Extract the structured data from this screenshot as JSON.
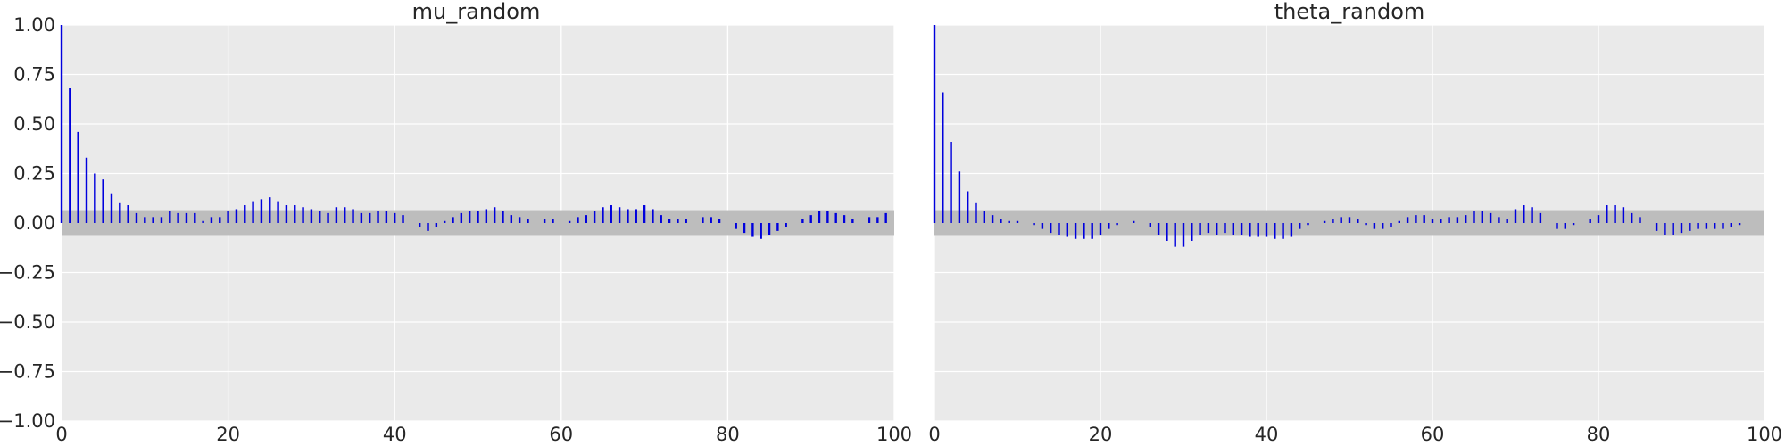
{
  "colors": {
    "bar": "#0000dd",
    "band": "#bdbdbd",
    "panel": "#eaeaea",
    "grid": "#ffffff"
  },
  "chart_data": [
    {
      "type": "bar",
      "title": "mu_random",
      "xlabel": "",
      "ylabel": "",
      "xlim": [
        0,
        100
      ],
      "ylim": [
        -1.0,
        1.0
      ],
      "xticks": [
        "0",
        "20",
        "40",
        "60",
        "80",
        "100"
      ],
      "yticks": [
        "1.00",
        "0.75",
        "0.50",
        "0.25",
        "0.00",
        "−0.25",
        "−0.50",
        "−0.75",
        "−1.00"
      ],
      "confidence_band": [
        -0.065,
        0.065
      ],
      "grid": true,
      "lags": [
        0,
        1,
        2,
        3,
        4,
        5,
        6,
        7,
        8,
        9,
        10,
        11,
        12,
        13,
        14,
        15,
        16,
        17,
        18,
        19,
        20,
        21,
        22,
        23,
        24,
        25,
        26,
        27,
        28,
        29,
        30,
        31,
        32,
        33,
        34,
        35,
        36,
        37,
        38,
        39,
        40,
        41,
        42,
        43,
        44,
        45,
        46,
        47,
        48,
        49,
        50,
        51,
        52,
        53,
        54,
        55,
        56,
        57,
        58,
        59,
        60,
        61,
        62,
        63,
        64,
        65,
        66,
        67,
        68,
        69,
        70,
        71,
        72,
        73,
        74,
        75,
        76,
        77,
        78,
        79,
        80,
        81,
        82,
        83,
        84,
        85,
        86,
        87,
        88,
        89,
        90,
        91,
        92,
        93,
        94,
        95,
        96,
        97,
        98,
        99
      ],
      "values": [
        1.0,
        0.68,
        0.46,
        0.33,
        0.25,
        0.22,
        0.15,
        0.1,
        0.09,
        0.05,
        0.03,
        0.03,
        0.03,
        0.06,
        0.05,
        0.05,
        0.05,
        0.01,
        0.03,
        0.03,
        0.06,
        0.07,
        0.09,
        0.11,
        0.12,
        0.13,
        0.11,
        0.09,
        0.09,
        0.08,
        0.07,
        0.06,
        0.05,
        0.08,
        0.08,
        0.07,
        0.05,
        0.05,
        0.06,
        0.06,
        0.05,
        0.04,
        0.0,
        -0.02,
        -0.04,
        -0.02,
        0.01,
        0.03,
        0.05,
        0.06,
        0.06,
        0.07,
        0.08,
        0.06,
        0.04,
        0.03,
        0.02,
        0.0,
        0.02,
        0.02,
        0.0,
        0.01,
        0.03,
        0.04,
        0.06,
        0.08,
        0.09,
        0.08,
        0.07,
        0.07,
        0.09,
        0.07,
        0.04,
        0.02,
        0.02,
        0.02,
        0.0,
        0.03,
        0.03,
        0.02,
        0.0,
        -0.03,
        -0.05,
        -0.07,
        -0.08,
        -0.06,
        -0.04,
        -0.02,
        0.0,
        0.02,
        0.04,
        0.06,
        0.06,
        0.05,
        0.04,
        0.02,
        0.0,
        0.03,
        0.03,
        0.05
      ]
    },
    {
      "type": "bar",
      "title": "theta_random",
      "xlabel": "",
      "ylabel": "",
      "xlim": [
        0,
        100
      ],
      "ylim": [
        -1.0,
        1.0
      ],
      "xticks": [
        "0",
        "20",
        "40",
        "60",
        "80",
        "100"
      ],
      "confidence_band": [
        -0.065,
        0.065
      ],
      "grid": true,
      "lags": [
        0,
        1,
        2,
        3,
        4,
        5,
        6,
        7,
        8,
        9,
        10,
        11,
        12,
        13,
        14,
        15,
        16,
        17,
        18,
        19,
        20,
        21,
        22,
        23,
        24,
        25,
        26,
        27,
        28,
        29,
        30,
        31,
        32,
        33,
        34,
        35,
        36,
        37,
        38,
        39,
        40,
        41,
        42,
        43,
        44,
        45,
        46,
        47,
        48,
        49,
        50,
        51,
        52,
        53,
        54,
        55,
        56,
        57,
        58,
        59,
        60,
        61,
        62,
        63,
        64,
        65,
        66,
        67,
        68,
        69,
        70,
        71,
        72,
        73,
        74,
        75,
        76,
        77,
        78,
        79,
        80,
        81,
        82,
        83,
        84,
        85,
        86,
        87,
        88,
        89,
        90,
        91,
        92,
        93,
        94,
        95,
        96,
        97,
        98,
        99
      ],
      "values": [
        1.0,
        0.66,
        0.41,
        0.26,
        0.16,
        0.1,
        0.06,
        0.04,
        0.02,
        0.01,
        0.01,
        0.0,
        -0.01,
        -0.03,
        -0.05,
        -0.06,
        -0.07,
        -0.08,
        -0.08,
        -0.08,
        -0.06,
        -0.03,
        -0.01,
        0.0,
        0.01,
        0.0,
        -0.02,
        -0.06,
        -0.09,
        -0.12,
        -0.12,
        -0.09,
        -0.06,
        -0.05,
        -0.06,
        -0.05,
        -0.06,
        -0.06,
        -0.07,
        -0.07,
        -0.07,
        -0.08,
        -0.08,
        -0.07,
        -0.03,
        -0.01,
        0.0,
        0.01,
        0.02,
        0.03,
        0.03,
        0.02,
        -0.01,
        -0.03,
        -0.03,
        -0.02,
        0.01,
        0.03,
        0.04,
        0.04,
        0.02,
        0.02,
        0.03,
        0.03,
        0.04,
        0.06,
        0.06,
        0.05,
        0.03,
        0.02,
        0.07,
        0.09,
        0.08,
        0.05,
        0.0,
        -0.03,
        -0.03,
        -0.01,
        0.0,
        0.02,
        0.04,
        0.09,
        0.09,
        0.08,
        0.05,
        0.03,
        0.0,
        -0.04,
        -0.06,
        -0.06,
        -0.05,
        -0.04,
        -0.03,
        -0.03,
        -0.03,
        -0.03,
        -0.02,
        -0.01,
        0.0,
        0.0
      ]
    }
  ]
}
